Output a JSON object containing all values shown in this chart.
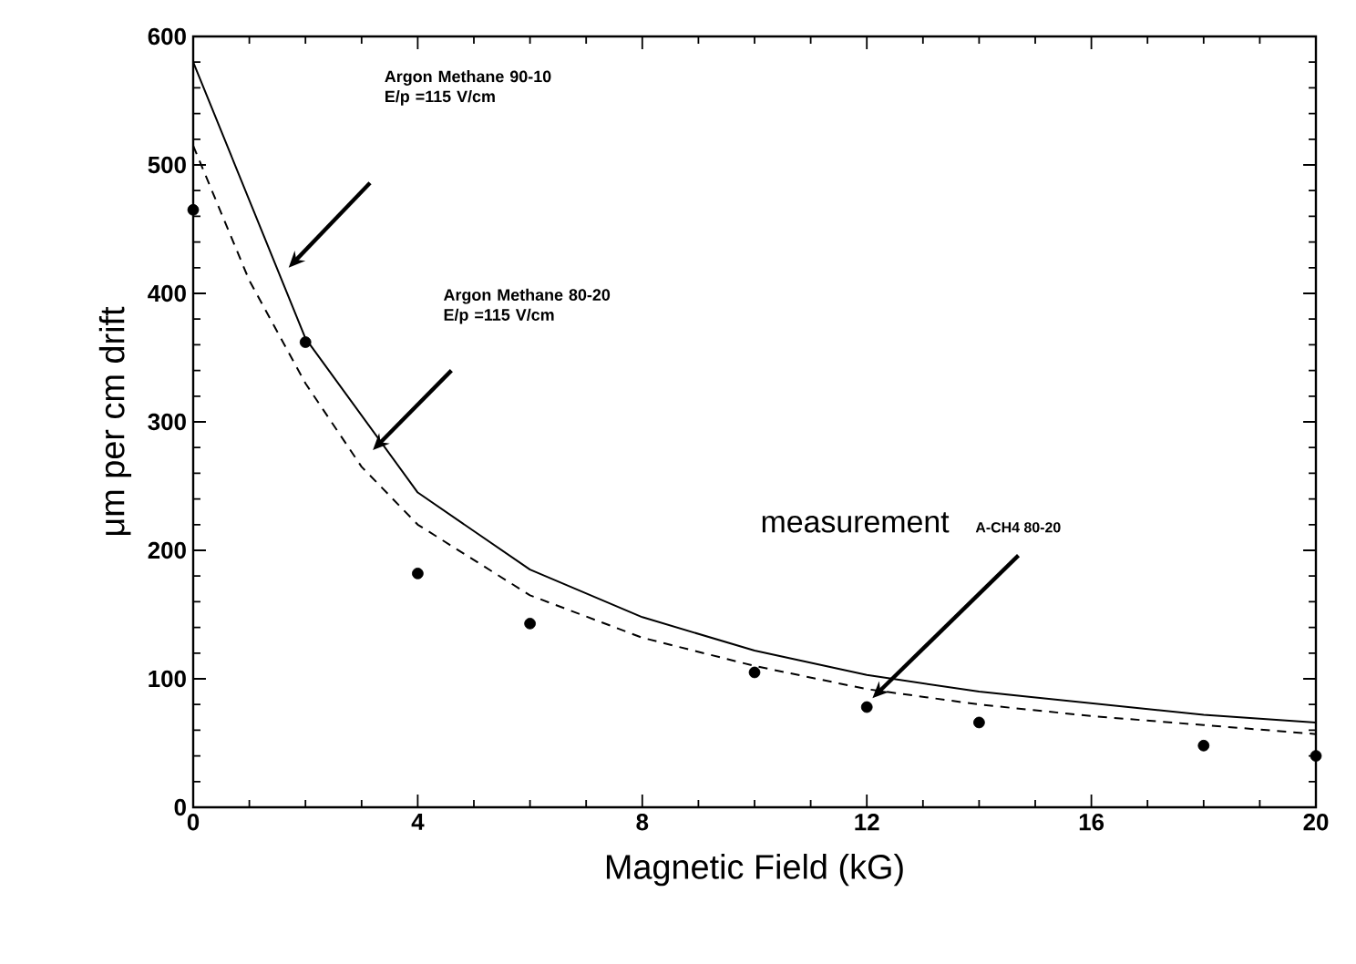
{
  "chart_data": {
    "type": "line",
    "xlabel": "Magnetic Field  (kG)",
    "ylabel": "μm  per  cm  drift",
    "xlim": [
      0,
      20
    ],
    "xticks": [
      0,
      4,
      8,
      12,
      16,
      20
    ],
    "ylim": [
      0,
      600
    ],
    "yticks": [
      0,
      100,
      200,
      300,
      400,
      500,
      600
    ],
    "grid": false,
    "series": [
      {
        "line_style": "solid",
        "marker": "none",
        "color": "#000000",
        "x": [
          0,
          2,
          4,
          6,
          8,
          10,
          12,
          14,
          16,
          18,
          20
        ],
        "values": [
          580,
          365,
          245,
          185,
          148,
          122,
          103,
          90,
          81,
          72,
          66
        ]
      },
      {
        "line_style": "dashed",
        "marker": "none",
        "color": "#000000",
        "x": [
          0,
          1,
          2,
          3,
          4,
          6,
          8,
          10,
          12,
          14,
          16,
          18,
          20
        ],
        "values": [
          515,
          410,
          330,
          265,
          220,
          165,
          132,
          110,
          92,
          80,
          71,
          64,
          57
        ]
      },
      {
        "type": "scatter",
        "marker": "circle",
        "color": "#000000",
        "x": [
          0,
          2,
          4,
          6,
          10,
          12,
          14,
          18,
          20
        ],
        "values": [
          465,
          362,
          182,
          143,
          105,
          78,
          66,
          48,
          40
        ]
      }
    ],
    "annotations": [
      "Argon Methane  90-10 E/p =115  V/cm",
      "Argon Methane  80-20 E/p =115  V/cm",
      "measurement",
      "A-CH4  80-20"
    ]
  }
}
